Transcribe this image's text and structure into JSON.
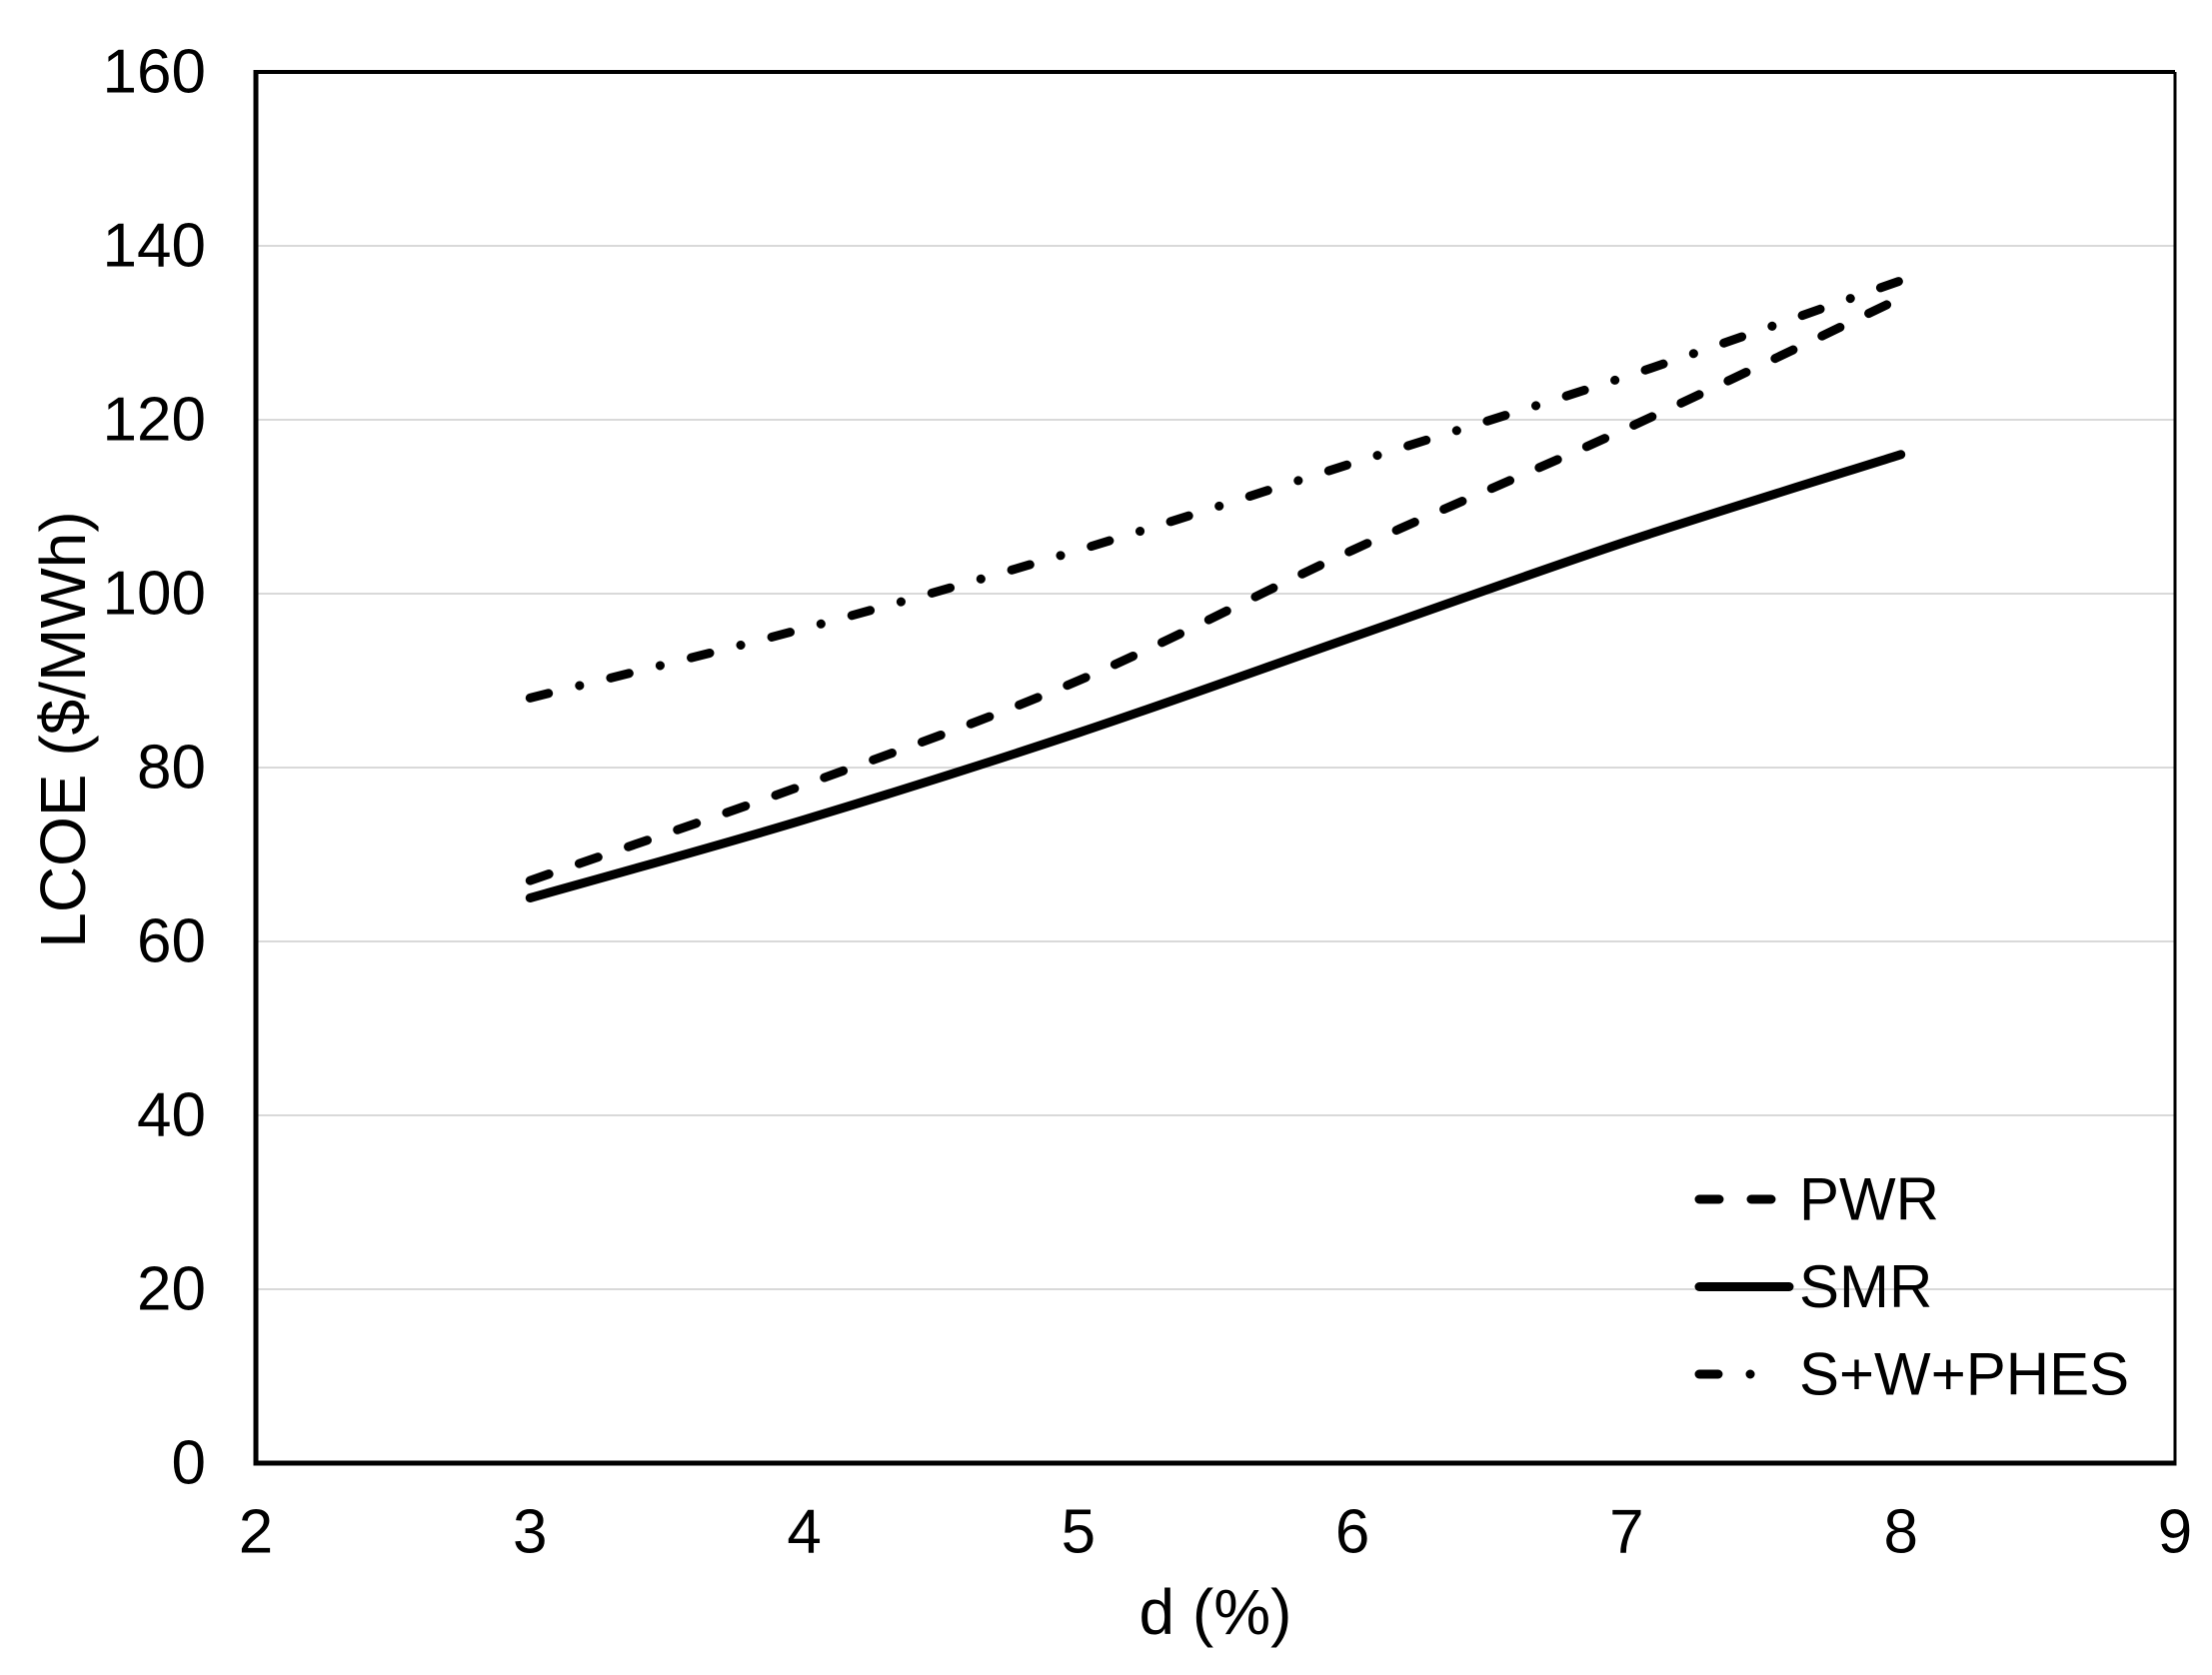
{
  "figure": {
    "background": "#ffffff",
    "text_color": "#000000"
  },
  "chart_data": {
    "type": "line",
    "title": "",
    "xlabel": "d (%)",
    "ylabel": "LCOE ($/MWh)",
    "xlim": [
      2,
      9
    ],
    "ylim": [
      0,
      160
    ],
    "x_ticks": [
      2,
      3,
      4,
      5,
      6,
      7,
      8,
      9
    ],
    "y_ticks": [
      0,
      20,
      40,
      60,
      80,
      100,
      120,
      140,
      160
    ],
    "grid": "horizontal",
    "gridline_color": "#D9D9D9",
    "axis_color": "#000000",
    "x": [
      3,
      4,
      5,
      6,
      7,
      8
    ],
    "series": [
      {
        "name": "PWR",
        "style": "dashed",
        "color": "#000000",
        "values": [
          67,
          78,
          90,
          105,
          119,
          134
        ]
      },
      {
        "name": "SMR",
        "style": "solid",
        "color": "#000000",
        "values": [
          65,
          74,
          84,
          95,
          106,
          116
        ]
      },
      {
        "name": "S+W+PHES",
        "style": "dashdot",
        "color": "#000000",
        "values": [
          88,
          96,
          105,
          115,
          125,
          136
        ]
      }
    ],
    "legend_position": "inside-bottom-right",
    "legend": [
      "PWR",
      "SMR",
      "S+W+PHES"
    ]
  }
}
